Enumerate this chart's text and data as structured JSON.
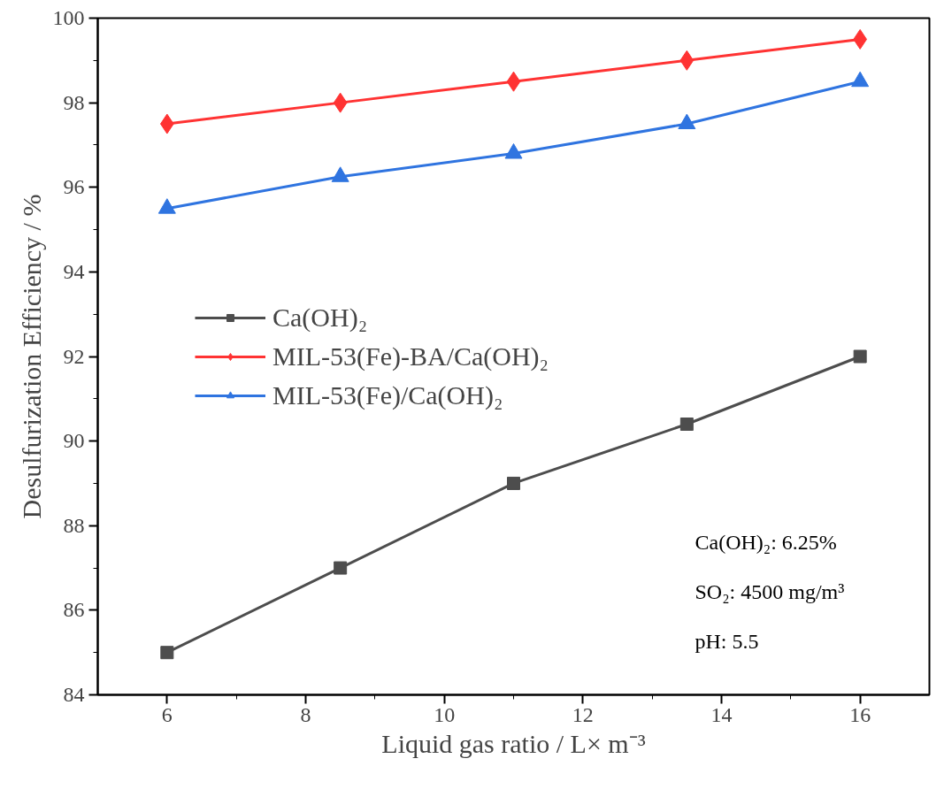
{
  "chart_data": {
    "type": "line",
    "xlabel": "Liquid gas ratio / L× m⁻³",
    "ylabel": "Desulfurization Efficiency / %",
    "x": [
      6,
      8.5,
      11,
      13.5,
      16
    ],
    "series": [
      {
        "name": "Ca(OH)₂",
        "color": "#4d4d4d",
        "marker": "square",
        "values": [
          85,
          87,
          89,
          90.4,
          92
        ]
      },
      {
        "name": "MIL-53(Fe)-BA/Ca(OH)₂",
        "color": "#ff3333",
        "marker": "diamond",
        "values": [
          97.5,
          98,
          98.5,
          99,
          99.5
        ]
      },
      {
        "name": "MIL-53(Fe)/Ca(OH)₂",
        "color": "#2f74e0",
        "marker": "triangle",
        "values": [
          95.5,
          96.25,
          96.8,
          97.5,
          98.5
        ]
      }
    ],
    "xlim": [
      5,
      17
    ],
    "ylim": [
      84,
      100
    ],
    "xticks": [
      6,
      8,
      10,
      12,
      14,
      16
    ],
    "yticks": [
      84,
      86,
      88,
      90,
      92,
      94,
      96,
      98,
      100
    ],
    "annotations": [
      "Ca(OH)₂: 6.25%",
      "SO₂: 4500 mg/m³",
      "pH: 5.5"
    ],
    "legend": "left",
    "grid": false,
    "line_style": "solid"
  }
}
